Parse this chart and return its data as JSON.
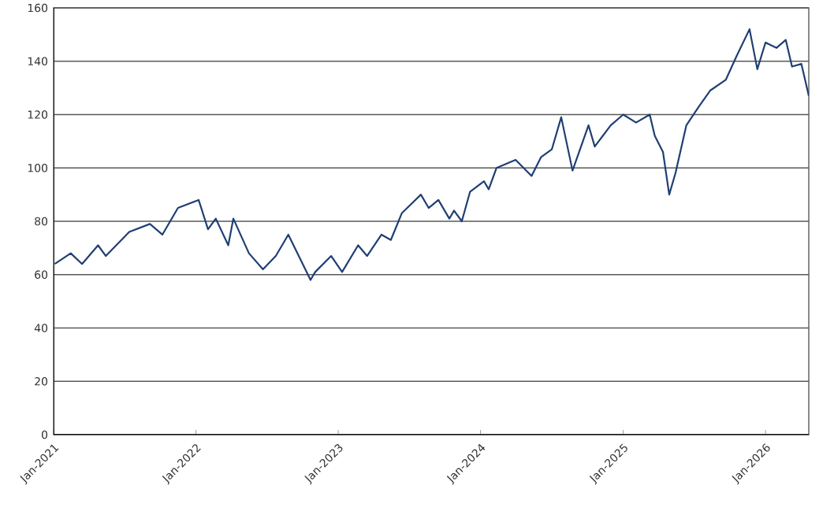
{
  "chart_data": {
    "type": "line",
    "x": [
      "2021-01-04",
      "2021-02-14",
      "2021-03-15",
      "2021-04-25",
      "2021-05-15",
      "2021-07-14",
      "2021-09-05",
      "2021-10-07",
      "2021-11-16",
      "2022-01-08",
      "2022-02-01",
      "2022-02-21",
      "2022-03-25",
      "2022-04-07",
      "2022-05-17",
      "2022-06-22",
      "2022-07-25",
      "2022-08-26",
      "2022-10-22",
      "2022-11-03",
      "2022-12-14",
      "2023-01-11",
      "2023-02-21",
      "2023-03-16",
      "2023-04-22",
      "2023-05-16",
      "2023-06-13",
      "2023-08-01",
      "2023-08-21",
      "2023-09-15",
      "2023-10-13",
      "2023-10-25",
      "2023-11-14",
      "2023-12-05",
      "2024-01-10",
      "2024-01-22",
      "2024-02-11",
      "2024-03-31",
      "2024-05-11",
      "2024-06-04",
      "2024-07-02",
      "2024-07-26",
      "2024-08-24",
      "2024-10-04",
      "2024-10-20",
      "2024-11-30",
      "2025-01-01",
      "2025-02-03",
      "2025-03-10",
      "2025-03-23",
      "2025-04-13",
      "2025-04-29",
      "2025-05-15",
      "2025-06-12",
      "2025-07-14",
      "2025-08-12",
      "2025-09-21",
      "2025-10-19",
      "2025-11-21",
      "2025-12-11",
      "2026-01-01",
      "2026-01-29",
      "2026-02-22",
      "2026-03-10",
      "2026-04-03",
      "2026-04-22"
    ],
    "series": [
      {
        "color": "#1f3f73",
        "values": [
          64,
          68,
          64,
          71,
          67,
          76,
          79,
          75,
          85,
          88,
          77,
          81,
          71,
          81,
          68,
          62,
          67,
          75,
          58,
          61,
          67,
          61,
          71,
          67,
          75,
          73,
          83,
          90,
          85,
          88,
          81,
          84,
          80,
          91,
          95,
          92,
          100,
          103,
          97,
          104,
          107,
          119,
          99,
          116,
          108,
          116,
          120,
          117,
          120,
          112,
          106,
          90,
          98,
          116,
          123,
          129,
          133,
          142,
          152,
          137,
          147,
          145,
          148,
          138,
          139,
          127
        ]
      }
    ],
    "xlim": [
      "2021-01-01",
      "2026-04-22"
    ],
    "xticks": [
      {
        "value": "2021-01-01",
        "label": "Jan-2021"
      },
      {
        "value": "2022-01-01",
        "label": "Jan-2022"
      },
      {
        "value": "2023-01-01",
        "label": "Jan-2023"
      },
      {
        "value": "2024-01-01",
        "label": "Jan-2024"
      },
      {
        "value": "2025-01-01",
        "label": "Jan-2025"
      },
      {
        "value": "2026-01-01",
        "label": "Jan-2026"
      }
    ],
    "ylim": [
      0,
      160
    ],
    "yticks": [
      0,
      20,
      40,
      60,
      80,
      100,
      120,
      140,
      160
    ],
    "grid": "y",
    "marker": "none",
    "line_style": "solid"
  }
}
